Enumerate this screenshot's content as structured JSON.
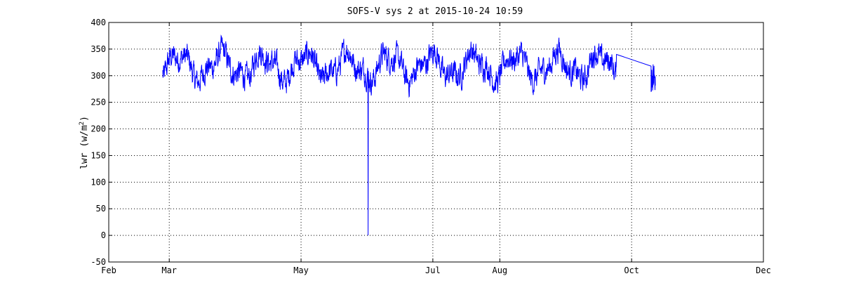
{
  "chart_data": {
    "type": "line",
    "title": "SOFS-V sys 2 at 2015-10-24 10:59",
    "xlabel": "",
    "ylabel": "lwr (w/m",
    "ylabel_sup": "2",
    "ylabel_close": ")",
    "ylim": [
      -50,
      400
    ],
    "xlim": [
      "Feb",
      "Dec"
    ],
    "yticks": [
      -50,
      0,
      50,
      100,
      150,
      200,
      250,
      300,
      350,
      400
    ],
    "ytick_labels": [
      "-50",
      "0",
      "50",
      "100",
      "150",
      "200",
      "250",
      "300",
      "350",
      "400"
    ],
    "xtick_labels": [
      "Feb",
      "Mar",
      "May",
      "Jul",
      "Aug",
      "Oct",
      "Dec"
    ],
    "grid": true,
    "series_color": "#0000ff",
    "series": [
      {
        "name": "",
        "x_start": "2015-02-26",
        "x_end": "2015-09-24",
        "band_min": 250,
        "band_max": 375,
        "outlier": {
          "x": "2015-06-01",
          "y": 0
        },
        "gap_line": {
          "from": {
            "x": "2015-09-24",
            "y": 340
          },
          "to": {
            "x": "2015-10-10",
            "y": 318
          }
        },
        "tail_segment": {
          "x_start": "2015-10-10",
          "x_end": "2015-10-12",
          "band_min": 268,
          "band_max": 328
        }
      }
    ]
  }
}
